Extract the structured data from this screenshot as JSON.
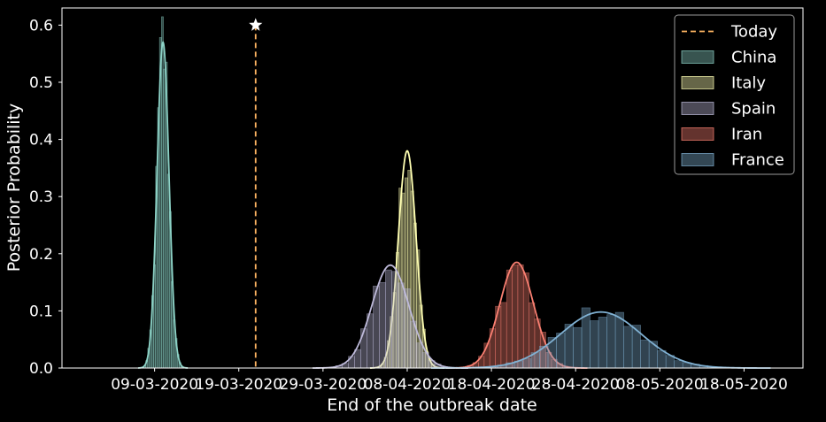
{
  "chart_data": {
    "type": "histogram+kde",
    "title": "",
    "xlabel": "End of the outbreak date",
    "ylabel": "Posterior Probability",
    "x_unit": "date (DD-MM-YYYY)",
    "xlim": [
      "2020-02-27",
      "2020-05-25"
    ],
    "ylim": [
      0,
      0.63
    ],
    "x_ticks": [
      "09-03-2020",
      "19-03-2020",
      "29-03-2020",
      "08-04-2020",
      "18-04-2020",
      "28-04-2020",
      "08-05-2020",
      "18-05-2020"
    ],
    "y_ticks": [
      "0.0",
      "0.1",
      "0.2",
      "0.3",
      "0.4",
      "0.5",
      "0.6"
    ],
    "grid": false,
    "legend_position": "top-right",
    "today": {
      "label": "Today",
      "date": "2020-03-21",
      "marker_y": 0.6,
      "color": "#fdb462"
    },
    "series": [
      {
        "name": "China",
        "color": "#8dd3c7",
        "peak_date": "2020-03-10",
        "sd_days": 0.7,
        "peak": 0.57
      },
      {
        "name": "Italy",
        "color": "#ffffb3",
        "peak_date": "2020-04-08",
        "sd_days": 1.05,
        "peak": 0.38
      },
      {
        "name": "Spain",
        "color": "#bebada",
        "peak_date": "2020-04-06",
        "sd_days": 2.2,
        "peak": 0.18
      },
      {
        "name": "Iran",
        "color": "#fb8072",
        "peak_date": "2020-04-21",
        "sd_days": 2.0,
        "peak": 0.185
      },
      {
        "name": "France",
        "color": "#80b1d3",
        "peak_date": "2020-05-01",
        "sd_days": 4.8,
        "peak": 0.098
      }
    ]
  }
}
